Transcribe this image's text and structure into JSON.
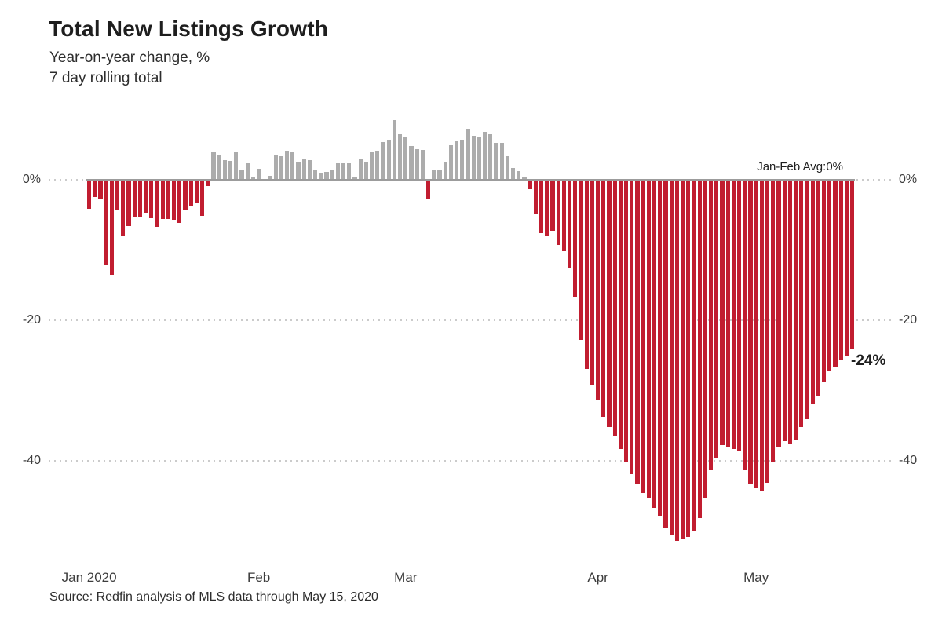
{
  "header": {
    "title": "Total New Listings Growth",
    "subtitle_line1": "Year-on-year change, %",
    "subtitle_line2": "7 day rolling total"
  },
  "annotations": {
    "avg_line_label": "Jan-Feb Avg:0%",
    "final_value_label": "-24%"
  },
  "source": "Source: Redfin analysis of MLS data through May 15, 2020",
  "chart_data": {
    "type": "bar",
    "title": "Total New Listings Growth",
    "subtitle": [
      "Year-on-year change, %",
      "7 day rolling total"
    ],
    "unit": "percent year-on-year change, 7 day rolling total",
    "grid": "horizontal-dotted",
    "legend": "none",
    "ylim": [
      -55,
      12
    ],
    "colors": {
      "positive_bar": "#acacac",
      "negative_bar": "#c11d30"
    },
    "y_ticks": [
      {
        "value": 0,
        "label": "0%"
      },
      {
        "value": -20,
        "label": "-20"
      },
      {
        "value": -40,
        "label": "-40"
      }
    ],
    "month_ticks": [
      {
        "label": "Jan 2020",
        "day_index": 0
      },
      {
        "label": "Feb",
        "day_index": 30
      },
      {
        "label": "Mar",
        "day_index": 56
      },
      {
        "label": "Apr",
        "day_index": 90
      },
      {
        "label": "May",
        "day_index": 118
      }
    ],
    "annotation_points": [
      {
        "text": "Jan-Feb Avg:0%",
        "y": 0
      },
      {
        "text": "-24%",
        "y": -24
      }
    ],
    "dates": [
      "Jan 1",
      "Jan 2",
      "Jan 3",
      "Jan 4",
      "Jan 5",
      "Jan 6",
      "Jan 7",
      "Jan 8",
      "Jan 9",
      "Jan 10",
      "Jan 11",
      "Jan 12",
      "Jan 13",
      "Jan 14",
      "Jan 15",
      "Jan 16",
      "Jan 17",
      "Jan 18",
      "Jan 19",
      "Jan 20",
      "Jan 21",
      "Jan 22",
      "Jan 23",
      "Jan 24",
      "Jan 25",
      "Jan 26",
      "Jan 27",
      "Jan 28",
      "Jan 29",
      "Jan 30",
      "Jan 31",
      "Feb 1",
      "Feb 2",
      "Feb 3",
      "Feb 4",
      "Feb 5",
      "Feb 6",
      "Feb 7",
      "Feb 8",
      "Feb 9",
      "Feb 10",
      "Feb 11",
      "Feb 12",
      "Feb 13",
      "Feb 14",
      "Feb 15",
      "Feb 16",
      "Feb 17",
      "Feb 18",
      "Feb 19",
      "Feb 20",
      "Feb 21",
      "Feb 22",
      "Feb 23",
      "Feb 24",
      "Feb 25",
      "Feb 26",
      "Feb 27",
      "Feb 28",
      "Feb 29",
      "Mar 1",
      "Mar 2",
      "Mar 3",
      "Mar 4",
      "Mar 5",
      "Mar 6",
      "Mar 7",
      "Mar 8",
      "Mar 9",
      "Mar 10",
      "Mar 11",
      "Mar 12",
      "Mar 13",
      "Mar 14",
      "Mar 15",
      "Mar 16",
      "Mar 17",
      "Mar 18",
      "Mar 19",
      "Mar 20",
      "Mar 21",
      "Mar 22",
      "Mar 23",
      "Mar 24",
      "Mar 25",
      "Mar 26",
      "Mar 27",
      "Mar 28",
      "Mar 29",
      "Mar 30",
      "Mar 31",
      "Apr 1",
      "Apr 2",
      "Apr 3",
      "Apr 4",
      "Apr 5",
      "Apr 6",
      "Apr 7",
      "Apr 8",
      "Apr 9",
      "Apr 10",
      "Apr 11",
      "Apr 12",
      "Apr 13",
      "Apr 14",
      "Apr 15",
      "Apr 16",
      "Apr 17",
      "Apr 18",
      "Apr 19",
      "Apr 20",
      "Apr 21",
      "Apr 22",
      "Apr 23",
      "Apr 24",
      "Apr 25",
      "Apr 26",
      "Apr 27",
      "Apr 28",
      "Apr 29",
      "Apr 30",
      "May 1",
      "May 2",
      "May 3",
      "May 4",
      "May 5",
      "May 6",
      "May 7",
      "May 8",
      "May 9",
      "May 10",
      "May 11",
      "May 12",
      "May 13",
      "May 14",
      "May 15"
    ],
    "values": [
      -4.1,
      -2.5,
      -2.8,
      -12.2,
      -13.5,
      -4.3,
      -8.1,
      -6.6,
      -5.2,
      -5.2,
      -4.7,
      -5.5,
      -6.7,
      -5.6,
      -5.6,
      -5.7,
      -6.1,
      -4.4,
      -3.8,
      -3.4,
      -5.1,
      -0.9,
      3.9,
      3.6,
      2.8,
      2.7,
      3.9,
      1.5,
      2.4,
      0.3,
      1.6,
      0.1,
      0.6,
      3.5,
      3.3,
      4.1,
      3.9,
      2.6,
      3.0,
      2.8,
      1.3,
      1.05,
      1.1,
      1.5,
      2.4,
      2.3,
      2.3,
      0.45,
      3.0,
      2.6,
      4.0,
      4.1,
      5.4,
      5.7,
      8.5,
      6.5,
      6.2,
      4.8,
      4.4,
      4.3,
      -2.8,
      1.4,
      1.4,
      2.6,
      4.9,
      5.5,
      5.7,
      7.3,
      6.3,
      6.1,
      6.8,
      6.5,
      5.3,
      5.2,
      3.3,
      1.7,
      1.2,
      0.5,
      -1.3,
      -4.9,
      -7.6,
      -8.0,
      -7.3,
      -9.3,
      -10.2,
      -12.6,
      -16.7,
      -22.8,
      -26.9,
      -29.3,
      -31.3,
      -33.7,
      -35.2,
      -36.5,
      -38.3,
      -40.2,
      -41.9,
      -43.3,
      -44.6,
      -45.4,
      -46.7,
      -47.8,
      -49.5,
      -50.6,
      -51.4,
      -51.1,
      -50.8,
      -49.9,
      -48.2,
      -45.4,
      -41.3,
      -39.6,
      -37.8,
      -38.1,
      -38.3,
      -38.7,
      -41.3,
      -43.3,
      -43.9,
      -44.3,
      -43.1,
      -40.2,
      -38.1,
      -37.2,
      -37.6,
      -37.0,
      -35.2,
      -34.1,
      -32.0,
      -30.7,
      -28.7,
      -27.2,
      -26.7,
      -25.7,
      -25.0,
      -24.0
    ]
  }
}
